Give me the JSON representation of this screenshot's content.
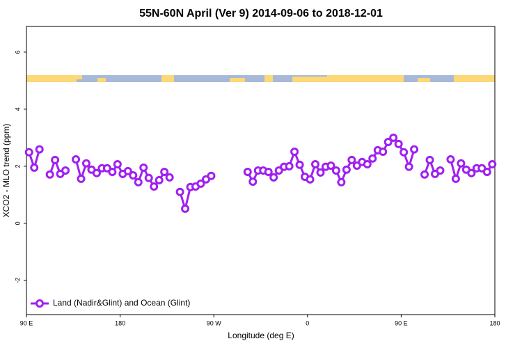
{
  "chart_data": {
    "type": "line",
    "title": "55N-60N April (Ver 9)   2014-09-06 to 2018-12-01",
    "xlabel": "Longitude (deg E)",
    "ylabel": "XCO2 - MLO trend (ppm)",
    "x": [
      92.5,
      97.5,
      102.5,
      107.5,
      112.5,
      117.5,
      122.5,
      127.5,
      132.5,
      137.5,
      142.5,
      147.5,
      152.5,
      157.5,
      162.5,
      167.5,
      172.5,
      177.5,
      182.5,
      187.5,
      192.5,
      197.5,
      202.5,
      207.5,
      212.5,
      217.5,
      222.5,
      227.5,
      232.5,
      237.5,
      242.5,
      247.5,
      252.5,
      257.5,
      262.5,
      267.5,
      272.5,
      277.5,
      282.5,
      287.5,
      292.5,
      297.5,
      302.5,
      307.5,
      312.5,
      317.5,
      322.5,
      327.5,
      332.5,
      337.5,
      342.5,
      347.5,
      352.5,
      357.5,
      362.5,
      367.5,
      372.5,
      377.5,
      382.5,
      387.5,
      392.5,
      397.5,
      402.5,
      407.5,
      412.5,
      417.5,
      422.5,
      427.5,
      432.5,
      437.5,
      442.5,
      447.5,
      452.5,
      457.5,
      462.5,
      467.5,
      472.5,
      477.5,
      482.5,
      487.5,
      492.5,
      497.5,
      502.5,
      507.5,
      512.5,
      517.5,
      522.5,
      527.5,
      532.5,
      537.5
    ],
    "series": [
      {
        "name": "Land (Nadir&Glint) and Ocean (Glint)",
        "color": "#a020f0",
        "values": [
          2.49,
          1.95,
          2.59,
          null,
          1.71,
          2.22,
          1.73,
          1.85,
          null,
          2.24,
          1.56,
          2.1,
          1.88,
          1.76,
          1.93,
          1.93,
          1.8,
          2.07,
          1.73,
          1.83,
          1.68,
          1.44,
          1.95,
          1.59,
          1.29,
          1.51,
          1.8,
          1.61,
          null,
          1.1,
          0.51,
          1.27,
          1.29,
          1.39,
          1.54,
          1.66,
          null,
          null,
          null,
          null,
          null,
          null,
          1.8,
          1.46,
          1.85,
          1.85,
          1.8,
          1.61,
          1.85,
          1.98,
          2.0,
          2.51,
          2.05,
          1.63,
          1.54,
          2.07,
          1.78,
          1.98,
          2.02,
          1.85,
          1.44,
          1.88,
          2.22,
          2.02,
          2.15,
          2.07,
          2.27,
          2.56,
          2.51,
          2.85,
          3.0,
          2.78,
          2.49,
          1.98,
          2.59,
          null,
          1.71,
          2.22,
          1.73,
          1.85,
          null,
          2.24,
          1.56,
          2.1,
          1.88,
          1.76,
          1.93,
          1.93,
          1.8,
          2.07
        ]
      }
    ],
    "xlim": [
      90,
      540
    ],
    "xticks": [
      {
        "value": 90,
        "label": "90 E"
      },
      180,
      {
        "value": 270,
        "label": "90 W"
      },
      {
        "value": 360,
        "label": "0"
      },
      {
        "value": 450,
        "label": "90 E"
      },
      {
        "value": 540,
        "label": "180"
      }
    ],
    "ylim": [
      -3.2,
      6.9
    ],
    "yticks": [
      -2,
      0,
      2,
      4,
      6
    ],
    "grid": false,
    "legend": "bottom-left"
  }
}
